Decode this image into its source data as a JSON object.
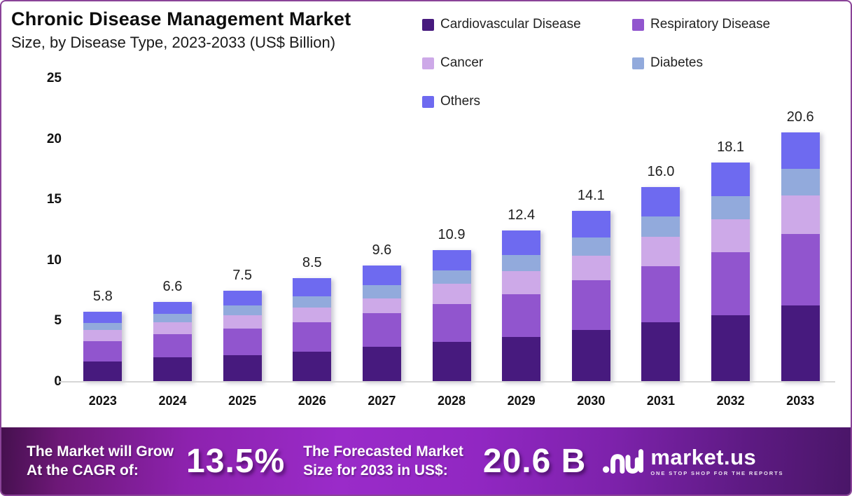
{
  "header": {
    "title": "Chronic Disease Management Market",
    "subtitle": "Size, by Disease Type, 2023-2033 (US$ Billion)"
  },
  "chart_data": {
    "type": "bar",
    "stacked": true,
    "title": "Chronic Disease Management Market Size, by Disease Type, 2023-2033 (US$ Billion)",
    "categories": [
      "2023",
      "2024",
      "2025",
      "2026",
      "2027",
      "2028",
      "2029",
      "2030",
      "2031",
      "2032",
      "2033"
    ],
    "series": [
      {
        "name": "Cardiovascular Disease",
        "color": "#471a7e",
        "values": [
          1.7,
          2.0,
          2.2,
          2.5,
          2.9,
          3.3,
          3.7,
          4.3,
          4.9,
          5.5,
          6.3
        ]
      },
      {
        "name": "Respiratory Disease",
        "color": "#9155ce",
        "values": [
          1.7,
          1.9,
          2.2,
          2.4,
          2.8,
          3.1,
          3.5,
          4.1,
          4.6,
          5.2,
          5.9
        ]
      },
      {
        "name": "Cancer",
        "color": "#cda9e8",
        "values": [
          0.9,
          1.0,
          1.1,
          1.2,
          1.2,
          1.7,
          1.9,
          2.0,
          2.4,
          2.7,
          3.2
        ]
      },
      {
        "name": "Diabetes",
        "color": "#92aadc",
        "values": [
          0.6,
          0.7,
          0.8,
          0.9,
          1.1,
          1.1,
          1.3,
          1.5,
          1.7,
          1.9,
          2.2
        ]
      },
      {
        "name": "Others",
        "color": "#6e6af0",
        "values": [
          0.9,
          1.0,
          1.2,
          1.5,
          1.6,
          1.7,
          2.0,
          2.2,
          2.4,
          2.8,
          3.0
        ]
      }
    ],
    "totals": [
      5.8,
      6.6,
      7.5,
      8.5,
      9.6,
      10.9,
      12.4,
      14.1,
      16.0,
      18.1,
      20.6
    ],
    "total_labels": [
      "5.8",
      "6.6",
      "7.5",
      "8.5",
      "9.6",
      "10.9",
      "12.4",
      "14.1",
      "16.0",
      "18.1",
      "20.6"
    ],
    "ylim": [
      0,
      25
    ],
    "yticks": [
      0,
      5,
      10,
      15,
      20,
      25
    ],
    "grid": false,
    "legend_position": "top-right"
  },
  "banner": {
    "cagr_label_line1": "The Market will Grow",
    "cagr_label_line2": "At the CAGR of:",
    "cagr_value": "13.5%",
    "forecast_label_line1": "The Forecasted Market",
    "forecast_label_line2": "Size for 2033 in US$:",
    "forecast_value": "20.6 B",
    "logo_text": "market.us",
    "logo_tagline": "ONE STOP SHOP FOR THE REPORTS"
  },
  "colors": {
    "frame_border": "#8a4398",
    "banner_purple": "#9a2bc9",
    "banner_dark": "#45104e"
  }
}
